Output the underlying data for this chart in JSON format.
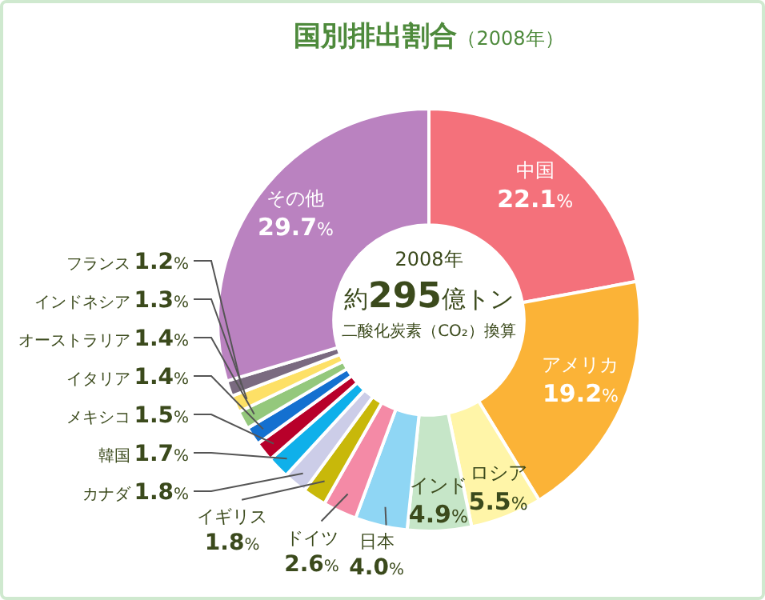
{
  "chart_data": {
    "type": "donut",
    "title": "国別排出割合",
    "subtitle": "（2008年）",
    "categories": [
      "中国",
      "アメリカ",
      "ロシア",
      "インド",
      "日本",
      "ドイツ",
      "イギリス",
      "カナダ",
      "韓国",
      "メキシコ",
      "イタリア",
      "オーストラリア",
      "インドネシア",
      "フランス",
      "その他"
    ],
    "values": [
      22.1,
      19.2,
      5.5,
      4.9,
      4.0,
      2.6,
      1.8,
      1.8,
      1.7,
      1.5,
      1.4,
      1.4,
      1.3,
      1.2,
      29.7
    ],
    "value_labels": [
      "22.1%",
      "19.2%",
      "5.5%",
      "4.9%",
      "4.0%",
      "2.6%",
      "1.8%",
      "1.8%",
      "1.7%",
      "1.5%",
      "1.4%",
      "1.4%",
      "1.3%",
      "1.2%",
      "29.7%"
    ],
    "colors": [
      "#f4717b",
      "#fbb337",
      "#fff5a8",
      "#c6e6c8",
      "#8fd6f4",
      "#f48aa6",
      "#c8b80a",
      "#cccde8",
      "#0fb0ea",
      "#b8002a",
      "#1470d0",
      "#94c87c",
      "#fde066",
      "#7a6a80",
      "#ba82c0"
    ],
    "annotations": [
      "2008年",
      "約295億トン",
      "二酸化炭素（CO₂）換算"
    ],
    "legend": false
  }
}
